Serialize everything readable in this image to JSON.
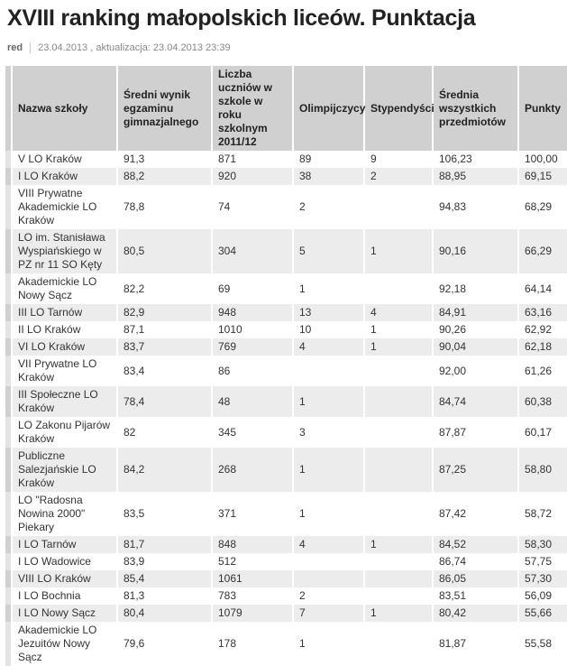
{
  "title": "XVIII ranking małopolskich liceów. Punktacja",
  "author": "red",
  "date": "23.04.2013 , aktualizacja: 23.04.2013 23:39",
  "columns": [
    "Nazwa szkoły",
    "Średni wynik egzaminu gimnazjalnego",
    "Liczba uczniów w szkole w roku szkolnym 2011/12",
    "Olimpijczycy",
    "Stypendyści",
    "Średnia wszystkich przedmiotów",
    "Punkty"
  ],
  "rows": [
    [
      "V LO Kraków",
      "91,3",
      "871",
      "89",
      "9",
      "106,23",
      "100,00"
    ],
    [
      "I LO Kraków",
      "88,2",
      "920",
      "38",
      "2",
      "88,95",
      "69,15"
    ],
    [
      "VIII Prywatne Akademickie LO Kraków",
      "78,8",
      "74",
      "2",
      "",
      "94,83",
      "68,29"
    ],
    [
      "LO im. Stanisława Wyspiańskiego w PZ nr 11 SO Kęty",
      "80,5",
      "304",
      "5",
      "1",
      "90,16",
      "66,29"
    ],
    [
      "Akademickie LO Nowy Sącz",
      "82,2",
      "69",
      "1",
      "",
      "92,18",
      "64,14"
    ],
    [
      "III LO Tarnów",
      "82,9",
      "948",
      "13",
      "4",
      "84,91",
      "63,16"
    ],
    [
      "II LO Kraków",
      "87,1",
      "1010",
      "10",
      "1",
      "90,26",
      "62,92"
    ],
    [
      "VI LO Kraków",
      "83,7",
      "769",
      "4",
      "1",
      "90,04",
      "62,18"
    ],
    [
      "VII Prywatne LO Kraków",
      "83,4",
      "86",
      "",
      "",
      "92,00",
      "61,26"
    ],
    [
      "III Społeczne LO Kraków",
      "78,4",
      "48",
      "1",
      "",
      "84,74",
      "60,38"
    ],
    [
      "LO Zakonu Pijarów Kraków",
      "82",
      "345",
      "3",
      "",
      "87,87",
      "60,17"
    ],
    [
      "Publiczne Salezjańskie LO Kraków",
      "84,2",
      "268",
      "1",
      "",
      "87,25",
      "58,80"
    ],
    [
      "LO \"Radosna Nowina 2000\" Piekary",
      "83,5",
      "371",
      "1",
      "",
      "87,42",
      "58,72"
    ],
    [
      "I LO Tarnów",
      "81,7",
      "848",
      "4",
      "1",
      "84,52",
      "58,30"
    ],
    [
      "I LO Wadowice",
      "83,9",
      "512",
      "",
      "",
      "86,74",
      "57,75"
    ],
    [
      "VIII LO Kraków",
      "85,4",
      "1061",
      "",
      "",
      "86,05",
      "57,30"
    ],
    [
      "I LO Bochnia",
      "81,3",
      "783",
      "2",
      "",
      "83,51",
      "56,09"
    ],
    [
      "I LO Nowy Sącz",
      "80,4",
      "1079",
      "7",
      "1",
      "80,42",
      "55,66"
    ],
    [
      "Akademickie LO Jezuitów Nowy Sącz",
      "79,6",
      "178",
      "1",
      "",
      "81,87",
      "55,58"
    ]
  ]
}
